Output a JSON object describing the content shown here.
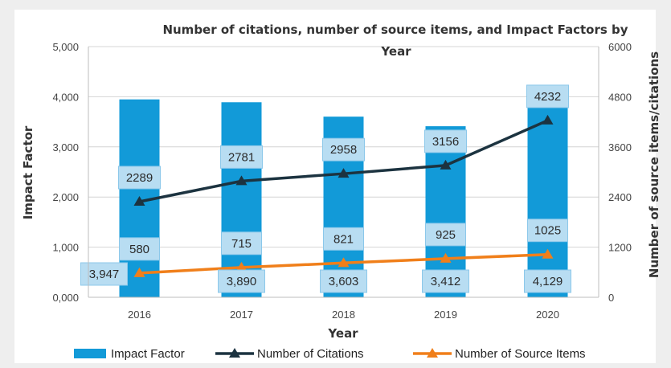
{
  "chart_data": {
    "type": "bar",
    "title_line1": "Number of citations, number of source items, and Impact Factors by",
    "title_line2": "Year",
    "xlabel": "Year",
    "ylabel_left": "Impact Factor",
    "ylabel_right": "Number of source items/citations",
    "categories": [
      "2016",
      "2017",
      "2018",
      "2019",
      "2020"
    ],
    "left_axis": {
      "ylim": [
        0,
        5
      ],
      "ticks": [
        "0,000",
        "1,000",
        "2,000",
        "3,000",
        "4,000",
        "5,000"
      ]
    },
    "right_axis": {
      "ylim": [
        0,
        6000
      ],
      "ticks": [
        "0",
        "1200",
        "2400",
        "3600",
        "4800",
        "6000"
      ]
    },
    "series": [
      {
        "name": "Impact Factor",
        "kind": "bar",
        "axis": "left",
        "color": "#129ad8",
        "values": [
          3.947,
          3.89,
          3.603,
          3.412,
          4.129
        ],
        "labels": [
          "3,947",
          "3,890",
          "3,603",
          "3,412",
          "4,129"
        ]
      },
      {
        "name": "Number of Citations",
        "kind": "line",
        "axis": "right",
        "color": "#1c3340",
        "values": [
          2289,
          2781,
          2958,
          3156,
          4232
        ],
        "labels": [
          "2289",
          "2781",
          "2958",
          "3156",
          "4232"
        ]
      },
      {
        "name": "Number of Source Items",
        "kind": "line",
        "axis": "right",
        "color": "#f07f1a",
        "values": [
          580,
          715,
          821,
          925,
          1025
        ],
        "labels": [
          "580",
          "715",
          "821",
          "925",
          "1025"
        ]
      }
    ],
    "grid": true,
    "legend_position": "bottom",
    "label_box_color": "#b8ddf2"
  }
}
